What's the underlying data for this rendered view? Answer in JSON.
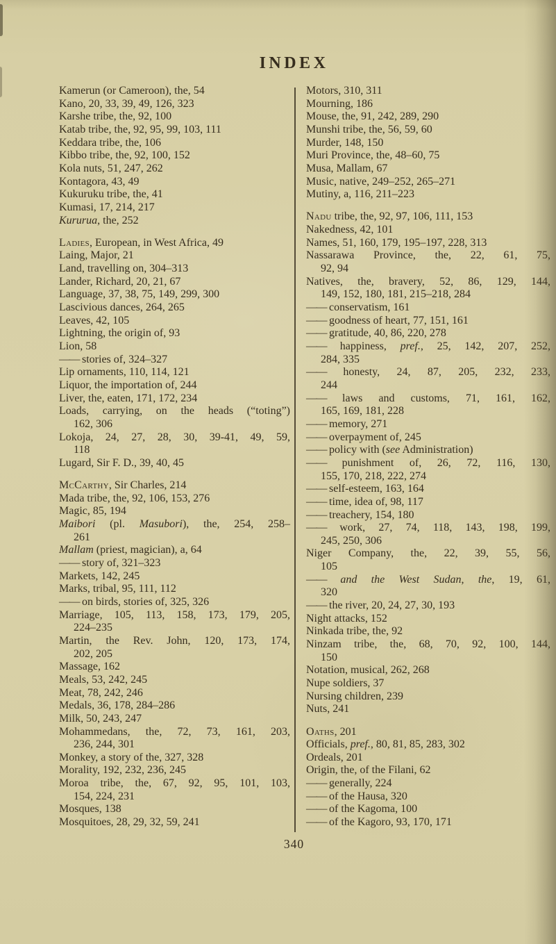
{
  "page": {
    "title": "INDEX",
    "page_number": "340"
  },
  "colors": {
    "paper": "#d8d0a6",
    "ink": "#362d1e",
    "divider": "#4b4028"
  },
  "index": {
    "left": [
      {
        "s": [
          [
            "Kamerun (or Cameroon), the, 54"
          ]
        ]
      },
      {
        "s": [
          [
            "Kano, 20, 33, 39, 49, 126, 323"
          ]
        ]
      },
      {
        "s": [
          [
            "Karshe tribe, the, 92, 100"
          ]
        ]
      },
      {
        "s": [
          [
            "Katab tribe, the, 92, 95, 99, 103, 111"
          ]
        ]
      },
      {
        "s": [
          [
            "Keddara tribe, the, 106"
          ]
        ]
      },
      {
        "s": [
          [
            "Kibbo tribe, the, 92, 100, 152"
          ]
        ]
      },
      {
        "s": [
          [
            "Kola nuts, 51, 247, 262"
          ]
        ]
      },
      {
        "s": [
          [
            "Kontagora, 43, 49"
          ]
        ]
      },
      {
        "s": [
          [
            "Kukuruku tribe, the, 41"
          ]
        ]
      },
      {
        "s": [
          [
            "Kumasi, 17, 214, 217"
          ]
        ]
      },
      {
        "s": [
          [
            "Kururua",
            "i"
          ],
          [
            ", the, 252"
          ]
        ]
      },
      {
        "gap": 1,
        "s": [
          [
            "Ladies",
            "sc"
          ],
          [
            ", European, in West Africa, 49"
          ]
        ]
      },
      {
        "s": [
          [
            "Laing, Major, 21"
          ]
        ]
      },
      {
        "s": [
          [
            "Land, travelling on, 304–313"
          ]
        ]
      },
      {
        "s": [
          [
            "Lander, Richard, 20, 21, 67"
          ]
        ]
      },
      {
        "s": [
          [
            "Language, 37, 38, 75, 149, 299, 300"
          ]
        ]
      },
      {
        "s": [
          [
            "Lascivious dances, 264, 265"
          ]
        ]
      },
      {
        "s": [
          [
            "Leaves, 42, 105"
          ]
        ]
      },
      {
        "s": [
          [
            "Lightning, the origin of, 93"
          ]
        ]
      },
      {
        "s": [
          [
            "Lion, 58"
          ]
        ]
      },
      {
        "s": [
          [
            "——",
            "d"
          ],
          [
            " stories of, 324–327"
          ]
        ]
      },
      {
        "s": [
          [
            "Lip ornaments, 110, 114, 121"
          ]
        ]
      },
      {
        "s": [
          [
            "Liquor, the importation of, 244"
          ]
        ]
      },
      {
        "s": [
          [
            "Liver, the, eaten, 171, 172, 234"
          ]
        ]
      },
      {
        "fill": 1,
        "s": [
          [
            "Loads, carrying, on the heads (“toting”)"
          ]
        ]
      },
      {
        "ind": 1,
        "s": [
          [
            "162, 306"
          ]
        ]
      },
      {
        "fill": 1,
        "s": [
          [
            "Lokoja, 24, 27, 28, 30, 39-41, 49, 59,"
          ]
        ]
      },
      {
        "ind": 1,
        "s": [
          [
            "118"
          ]
        ]
      },
      {
        "s": [
          [
            "Lugard, Sir F. D., 39, 40, 45"
          ]
        ]
      },
      {
        "gap": 1,
        "s": [
          [
            "McCarthy",
            "sc"
          ],
          [
            ", Sir Charles, 214"
          ]
        ]
      },
      {
        "s": [
          [
            "Mada tribe, the, 92, 106, 153, 276"
          ]
        ]
      },
      {
        "s": [
          [
            "Magic, 85, 194"
          ]
        ]
      },
      {
        "fill": 1,
        "s": [
          [
            "Maibori",
            "i"
          ],
          [
            " (pl. "
          ],
          [
            "Masubori",
            "i"
          ],
          [
            "), the, 254, 258–"
          ]
        ]
      },
      {
        "ind": 1,
        "s": [
          [
            "261"
          ]
        ]
      },
      {
        "s": [
          [
            "Mallam",
            "i"
          ],
          [
            " (priest, magician), a, 64"
          ]
        ]
      },
      {
        "s": [
          [
            "——",
            "d"
          ],
          [
            " story of, 321–323"
          ]
        ]
      },
      {
        "s": [
          [
            "Markets, 142, 245"
          ]
        ]
      },
      {
        "s": [
          [
            "Marks, tribal, 95, 111, 112"
          ]
        ]
      },
      {
        "s": [
          [
            "——",
            "d"
          ],
          [
            " on birds, stories of, 325, 326"
          ]
        ]
      },
      {
        "fill": 1,
        "s": [
          [
            "Marriage, 105, 113, 158, 173, 179, 205,"
          ]
        ]
      },
      {
        "ind": 1,
        "s": [
          [
            "224–235"
          ]
        ]
      },
      {
        "fill": 1,
        "s": [
          [
            "Martin, the Rev. John, 120, 173, 174,"
          ]
        ]
      },
      {
        "ind": 1,
        "s": [
          [
            "202, 205"
          ]
        ]
      },
      {
        "s": [
          [
            "Massage, 162"
          ]
        ]
      },
      {
        "s": [
          [
            "Meals, 53, 242, 245"
          ]
        ]
      },
      {
        "s": [
          [
            "Meat, 78, 242, 246"
          ]
        ]
      },
      {
        "s": [
          [
            "Medals, 36, 178, 284–286"
          ]
        ]
      },
      {
        "s": [
          [
            "Milk, 50, 243, 247"
          ]
        ]
      },
      {
        "fill": 1,
        "s": [
          [
            "Mohammedans, the, 72, 73, 161, 203,"
          ]
        ]
      },
      {
        "ind": 1,
        "s": [
          [
            "236, 244, 301"
          ]
        ]
      },
      {
        "s": [
          [
            "Monkey, a story of the, 327, 328"
          ]
        ]
      },
      {
        "s": [
          [
            "Morality, 192, 232, 236, 245"
          ]
        ]
      },
      {
        "fill": 1,
        "s": [
          [
            "Moroa tribe, the, 67, 92, 95, 101, 103,"
          ]
        ]
      },
      {
        "ind": 1,
        "s": [
          [
            "154, 224, 231"
          ]
        ]
      },
      {
        "s": [
          [
            "Mosques, 138"
          ]
        ]
      },
      {
        "s": [
          [
            "Mosquitoes, 28, 29, 32, 59, 241"
          ]
        ]
      }
    ],
    "right": [
      {
        "s": [
          [
            "Motors, 310, 311"
          ]
        ]
      },
      {
        "s": [
          [
            "Mourning, 186"
          ]
        ]
      },
      {
        "s": [
          [
            "Mouse, the, 91, 242, 289, 290"
          ]
        ]
      },
      {
        "s": [
          [
            "Munshi tribe, the, 56, 59, 60"
          ]
        ]
      },
      {
        "s": [
          [
            "Murder, 148, 150"
          ]
        ]
      },
      {
        "s": [
          [
            "Muri Province, the, 48–60, 75"
          ]
        ]
      },
      {
        "s": [
          [
            "Musa, Mallam, 67"
          ]
        ]
      },
      {
        "s": [
          [
            "Music, native, 249–252, 265–271"
          ]
        ]
      },
      {
        "s": [
          [
            "Mutiny, a, 116, 211–223"
          ]
        ]
      },
      {
        "gap": 1,
        "s": [
          [
            "Nadu",
            "sc"
          ],
          [
            " tribe, the, 92, 97, 106, 111, 153"
          ]
        ]
      },
      {
        "s": [
          [
            "Nakedness, 42, 101"
          ]
        ]
      },
      {
        "s": [
          [
            "Names, 51, 160, 179, 195–197, 228, 313"
          ]
        ]
      },
      {
        "fill": 1,
        "s": [
          [
            "Nassarawa Province, the, 22, 61, 75,"
          ]
        ]
      },
      {
        "ind": 1,
        "s": [
          [
            "92, 94"
          ]
        ]
      },
      {
        "fill": 1,
        "s": [
          [
            "Natives, the, bravery, 52, 86, 129, 144,"
          ]
        ]
      },
      {
        "ind": 1,
        "s": [
          [
            "149, 152, 180, 181, 215–218, 284"
          ]
        ]
      },
      {
        "s": [
          [
            "——",
            "d"
          ],
          [
            " conservatism, 161"
          ]
        ]
      },
      {
        "s": [
          [
            "——",
            "d"
          ],
          [
            " goodness of heart, 77, 151, 161"
          ]
        ]
      },
      {
        "s": [
          [
            "——",
            "d"
          ],
          [
            " gratitude, 40, 86, 220, 278"
          ]
        ]
      },
      {
        "fill": 1,
        "s": [
          [
            "——",
            "d"
          ],
          [
            " happiness, "
          ],
          [
            "pref.",
            "i"
          ],
          [
            ", 25, 142, 207, 252,"
          ]
        ]
      },
      {
        "ind": 1,
        "s": [
          [
            "284, 335"
          ]
        ]
      },
      {
        "fill": 1,
        "s": [
          [
            "——",
            "d"
          ],
          [
            " honesty, 24, 87, 205, 232, 233,"
          ]
        ]
      },
      {
        "ind": 1,
        "s": [
          [
            "244"
          ]
        ]
      },
      {
        "fill": 1,
        "s": [
          [
            "——",
            "d"
          ],
          [
            " laws and customs, 71, 161, 162,"
          ]
        ]
      },
      {
        "ind": 1,
        "s": [
          [
            "165, 169, 181, 228"
          ]
        ]
      },
      {
        "s": [
          [
            "——",
            "d"
          ],
          [
            " memory, 271"
          ]
        ]
      },
      {
        "s": [
          [
            "——",
            "d"
          ],
          [
            " overpayment of, 245"
          ]
        ]
      },
      {
        "s": [
          [
            "——",
            "d"
          ],
          [
            " policy with ("
          ],
          [
            "see",
            "i"
          ],
          [
            " Administration)"
          ]
        ]
      },
      {
        "fill": 1,
        "s": [
          [
            "——",
            "d"
          ],
          [
            " punishment of, 26, 72, 116, 130,"
          ]
        ]
      },
      {
        "ind": 1,
        "s": [
          [
            "155, 170, 218, 222, 274"
          ]
        ]
      },
      {
        "s": [
          [
            "——",
            "d"
          ],
          [
            " self-esteem, 163, 164"
          ]
        ]
      },
      {
        "s": [
          [
            "——",
            "d"
          ],
          [
            " time, idea of, 98, 117"
          ]
        ]
      },
      {
        "s": [
          [
            "——",
            "d"
          ],
          [
            " treachery, 154, 180"
          ]
        ]
      },
      {
        "fill": 1,
        "s": [
          [
            "——",
            "d"
          ],
          [
            " work, 27, 74, 118, 143, 198, 199,"
          ]
        ]
      },
      {
        "ind": 1,
        "s": [
          [
            "245, 250, 306"
          ]
        ]
      },
      {
        "fill": 1,
        "s": [
          [
            "Niger Company, the, 22, 39, 55, 56,"
          ]
        ]
      },
      {
        "ind": 1,
        "s": [
          [
            "105"
          ]
        ]
      },
      {
        "fill": 1,
        "s": [
          [
            "——",
            "d"
          ],
          [
            " "
          ],
          [
            "and the West Sudan",
            "i"
          ],
          [
            ", "
          ],
          [
            "the",
            "i"
          ],
          [
            ", 19, 61,"
          ]
        ]
      },
      {
        "ind": 1,
        "s": [
          [
            "320"
          ]
        ]
      },
      {
        "s": [
          [
            "——",
            "d"
          ],
          [
            " the river, 20, 24, 27, 30, 193"
          ]
        ]
      },
      {
        "s": [
          [
            "Night attacks, 152"
          ]
        ]
      },
      {
        "s": [
          [
            "Ninkada tribe, the, 92"
          ]
        ]
      },
      {
        "fill": 1,
        "s": [
          [
            "Ninzam tribe, the, 68, 70, 92, 100, 144,"
          ]
        ]
      },
      {
        "ind": 1,
        "s": [
          [
            "150"
          ]
        ]
      },
      {
        "s": [
          [
            "Notation, musical, 262, 268"
          ]
        ]
      },
      {
        "s": [
          [
            "Nupe soldiers, 37"
          ]
        ]
      },
      {
        "s": [
          [
            "Nursing children, 239"
          ]
        ]
      },
      {
        "s": [
          [
            "Nuts, 241"
          ]
        ]
      },
      {
        "gap": 1,
        "s": [
          [
            "Oaths",
            "sc"
          ],
          [
            ", 201"
          ]
        ]
      },
      {
        "s": [
          [
            "Officials, "
          ],
          [
            "pref.",
            "i"
          ],
          [
            ", 80, 81, 85, 283, 302"
          ]
        ]
      },
      {
        "s": [
          [
            "Ordeals, 201"
          ]
        ]
      },
      {
        "s": [
          [
            "Origin, the, of the Filani, 62"
          ]
        ]
      },
      {
        "s": [
          [
            "——",
            "d"
          ],
          [
            " generally, 224"
          ]
        ]
      },
      {
        "s": [
          [
            "——",
            "d"
          ],
          [
            " of the Hausa, 320"
          ]
        ]
      },
      {
        "s": [
          [
            "——",
            "d"
          ],
          [
            " of the Kagoma, 100"
          ]
        ]
      },
      {
        "s": [
          [
            "——",
            "d"
          ],
          [
            " of the Kagoro, 93, 170, 171"
          ]
        ]
      }
    ]
  }
}
